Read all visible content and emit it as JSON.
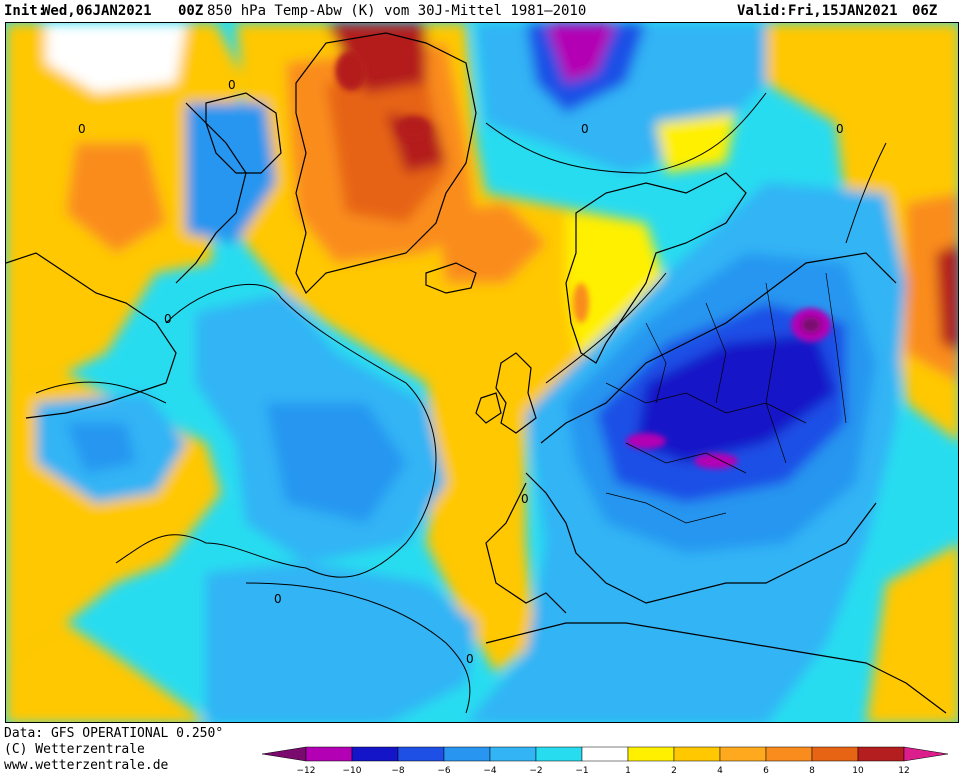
{
  "header": {
    "init_label": "Init:",
    "init_value": "Wed,06JAN2021",
    "init_hour": "00Z",
    "title": "850 hPa Temp-Abw (K) vom 30J-Mittel 1981–2010",
    "valid_label": "Valid:",
    "valid_value": "Fri,15JAN2021",
    "valid_hour": "06Z"
  },
  "credits": {
    "data_line": "Data: GFS OPERATIONAL 0.250°",
    "copyright": "(C) Wetterzentrale",
    "website": "www.wetterzentrale.de"
  },
  "legend": {
    "ticks": [
      "−12",
      "−10",
      "−8",
      "−6",
      "−4",
      "−2",
      "−1",
      "1",
      "2",
      "4",
      "6",
      "8",
      "10",
      "12"
    ],
    "colors": {
      "lt12": "#7a0a6e",
      "m12_m10": "#b400b4",
      "m10_m8": "#1414c8",
      "m8_m6": "#1e50e6",
      "m6_m4": "#2896f0",
      "m4_m2": "#32b4f5",
      "m2_m1": "#28dcf0",
      "m1_p1": "#ffffff",
      "p1_p2": "#fff000",
      "p2_p4": "#ffc800",
      "p4_p6": "#ffaa1e",
      "p6_p8": "#fa8c1e",
      "p8_p10": "#e66414",
      "p10_p12": "#b41e1e",
      "gt12": "#dc1e8c"
    }
  },
  "map": {
    "contour_labels": [
      "0",
      "0",
      "0",
      "0",
      "0",
      "0",
      "0",
      "0"
    ]
  }
}
